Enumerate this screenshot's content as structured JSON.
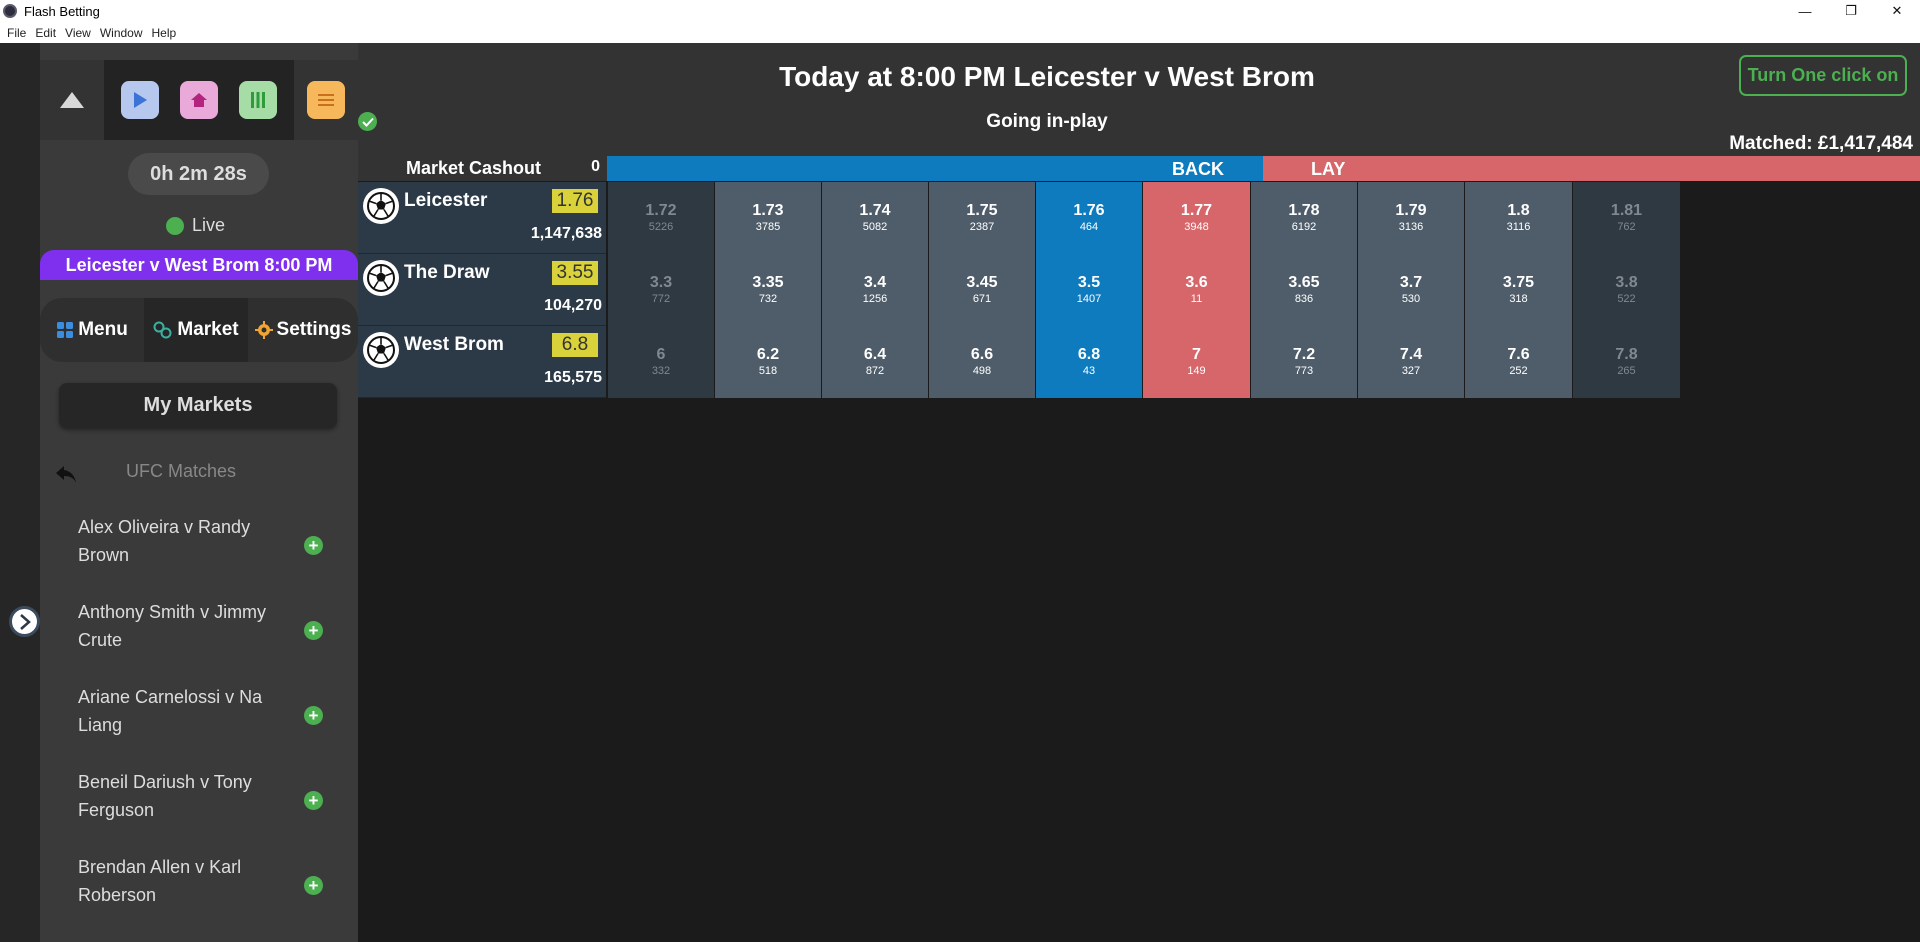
{
  "window": {
    "title": "Flash Betting",
    "minimize": "—",
    "maximize": "❐",
    "close": "✕"
  },
  "menubar": {
    "file": "File",
    "edit": "Edit",
    "view": "View",
    "window": "Window",
    "help": "Help"
  },
  "sidebar": {
    "timer": "0h 2m 28s",
    "live_label": "Live",
    "event_bar": "Leicester v West Brom 8:00 PM",
    "nav": {
      "menu": "Menu",
      "market": "Market",
      "settings": "Settings"
    },
    "my_markets": "My Markets",
    "ufc_title": "UFC Matches",
    "matches": [
      "Alex Oliveira v Randy Brown",
      "Anthony Smith v Jimmy Crute",
      "Ariane Carnelossi v Na Liang",
      "Beneil Dariush v Tony Ferguson",
      "Brendan Allen v Karl Roberson"
    ],
    "colors": {
      "play": "#b6c8ee",
      "home": "#e9a9d9",
      "pause": "#a6dda6",
      "menu": "#f6b85a",
      "event_bar": "#7f2fee"
    }
  },
  "header": {
    "event_title": "Today at 8:00 PM Leicester v West Brom",
    "status": "Going in-play",
    "one_click": "Turn One click on",
    "matched": "Matched: £1,417,484"
  },
  "ladder": {
    "cashout_label": "Market Cashout",
    "cashout_value": "0",
    "back_label": "BACK",
    "lay_label": "LAY",
    "runners": [
      {
        "name": "Leicester",
        "last": "1.76",
        "volume": "1,147,638",
        "cells": [
          {
            "p": "1.72",
            "s": "5226"
          },
          {
            "p": "1.73",
            "s": "3785"
          },
          {
            "p": "1.74",
            "s": "5082"
          },
          {
            "p": "1.75",
            "s": "2387"
          },
          {
            "p": "1.76",
            "s": "464"
          },
          {
            "p": "1.77",
            "s": "3948"
          },
          {
            "p": "1.78",
            "s": "6192"
          },
          {
            "p": "1.79",
            "s": "3136"
          },
          {
            "p": "1.8",
            "s": "3116"
          },
          {
            "p": "1.81",
            "s": "762"
          }
        ]
      },
      {
        "name": "The Draw",
        "last": "3.55",
        "volume": "104,270",
        "cells": [
          {
            "p": "3.3",
            "s": "772"
          },
          {
            "p": "3.35",
            "s": "732"
          },
          {
            "p": "3.4",
            "s": "1256"
          },
          {
            "p": "3.45",
            "s": "671"
          },
          {
            "p": "3.5",
            "s": "1407"
          },
          {
            "p": "3.6",
            "s": "11"
          },
          {
            "p": "3.65",
            "s": "836"
          },
          {
            "p": "3.7",
            "s": "530"
          },
          {
            "p": "3.75",
            "s": "318"
          },
          {
            "p": "3.8",
            "s": "522"
          }
        ]
      },
      {
        "name": "West Brom",
        "last": "6.8",
        "volume": "165,575",
        "cells": [
          {
            "p": "6",
            "s": "332"
          },
          {
            "p": "6.2",
            "s": "518"
          },
          {
            "p": "6.4",
            "s": "872"
          },
          {
            "p": "6.6",
            "s": "498"
          },
          {
            "p": "6.8",
            "s": "43"
          },
          {
            "p": "7",
            "s": "149"
          },
          {
            "p": "7.2",
            "s": "773"
          },
          {
            "p": "7.4",
            "s": "327"
          },
          {
            "p": "7.6",
            "s": "252"
          },
          {
            "p": "7.8",
            "s": "265"
          }
        ]
      }
    ],
    "colors": {
      "back": "#0f7bbf",
      "lay": "#d6666a",
      "mid": "#4f5d6a",
      "dim": "#2f3941",
      "last_traded": "#d9d23b"
    }
  }
}
